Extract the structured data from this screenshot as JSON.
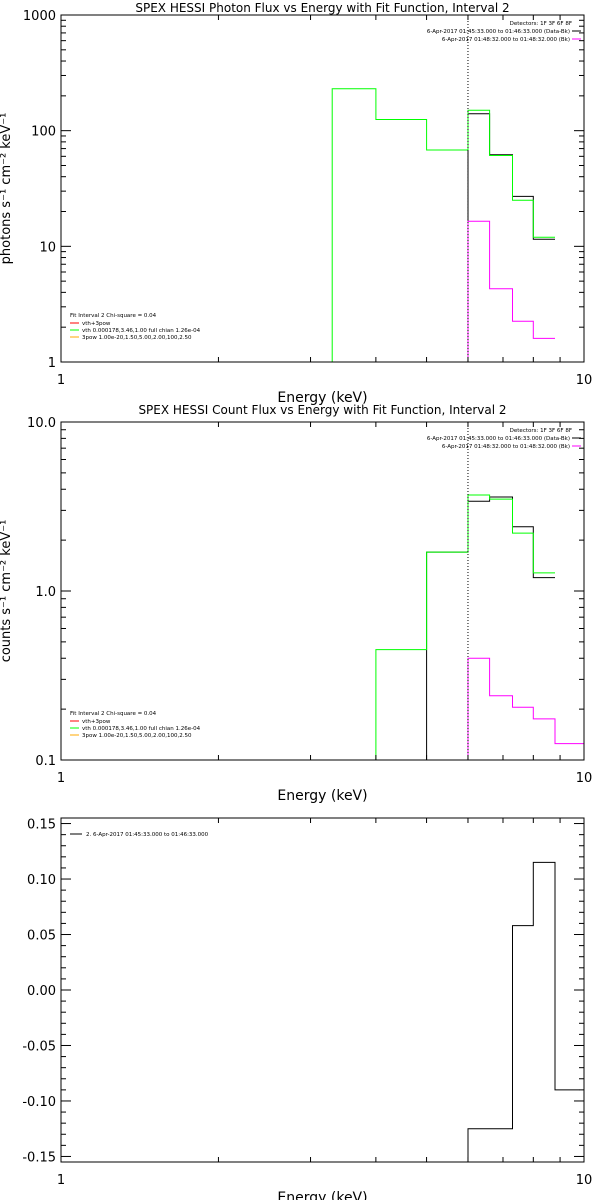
{
  "chart_data": [
    {
      "type": "line",
      "title": "SPEX HESSI Photon Flux vs Energy with Fit Function, Interval 2",
      "xlabel": "Energy (keV)",
      "ylabel": "photons s⁻¹ cm⁻² keV⁻¹",
      "x_scale": "log",
      "y_scale": "log",
      "xlim": [
        1,
        10
      ],
      "ylim": [
        1,
        1000
      ],
      "x_ticks": [
        {
          "v": 1,
          "label": "1"
        },
        {
          "v": 10,
          "label": "10"
        }
      ],
      "y_ticks": [
        {
          "v": 1,
          "label": "1"
        },
        {
          "v": 10,
          "label": "10"
        },
        {
          "v": 100,
          "label": "100"
        },
        {
          "v": 1000,
          "label": "1000"
        }
      ],
      "vline": 6.0,
      "legend_top": {
        "header": "Detectors: 1F 3F 6F 8F",
        "entries": [
          {
            "text": "6-Apr-2017 01:45:33.000 to 01:46:33.000 (Data-Bk)",
            "color": "#000000"
          },
          {
            "text": "6-Apr-2017 01:48:32.000 to 01:48:32.000 (Bk)",
            "color": "#ff00ff"
          }
        ]
      },
      "legend_bottom": {
        "header": "Fit Interval 2   Chi-square = 0.04",
        "entries": [
          {
            "text": "vth+3pow",
            "color": "#ff0000"
          },
          {
            "text": "vth 0.000178,3.46,1.00   full chian 1.26e-04",
            "color": "#00ff00"
          },
          {
            "text": "3pow 1.00e-20,1.50,5.00,2.00,100,2.50",
            "color": "#ffaa00"
          }
        ]
      },
      "series": [
        {
          "color": "#000000",
          "edges": [
            6.0,
            6.6,
            7.3,
            8.0,
            8.8
          ],
          "values": [
            140,
            62,
            27,
            11.5
          ],
          "drop_start": true,
          "drop_end": false
        },
        {
          "color": "#00ff00",
          "edges": [
            3.3,
            4.0,
            5.0,
            6.0,
            6.6,
            7.3,
            8.0,
            8.8
          ],
          "values": [
            230,
            125,
            68,
            150,
            61,
            25,
            12
          ],
          "drop_start": true,
          "drop_end": false
        },
        {
          "color": "#ff00ff",
          "edges": [
            6.0,
            6.6,
            7.3,
            8.0,
            8.8
          ],
          "values": [
            16.5,
            4.3,
            2.25,
            1.6
          ],
          "drop_start": true,
          "drop_end": false
        }
      ]
    },
    {
      "type": "line",
      "title": "SPEX HESSI Count Flux vs Energy with Fit Function, Interval 2",
      "xlabel": "Energy (keV)",
      "ylabel": "counts s⁻¹ cm⁻² keV⁻¹",
      "x_scale": "log",
      "y_scale": "log",
      "xlim": [
        1,
        10
      ],
      "ylim": [
        0.1,
        10
      ],
      "x_ticks": [
        {
          "v": 1,
          "label": "1"
        },
        {
          "v": 10,
          "label": "10"
        }
      ],
      "y_ticks": [
        {
          "v": 0.1,
          "label": "0.1"
        },
        {
          "v": 1,
          "label": "1.0"
        },
        {
          "v": 10,
          "label": "10.0"
        }
      ],
      "vline": 6.0,
      "legend_top": {
        "header": "Detectors: 1F 3F 6F 8F",
        "entries": [
          {
            "text": "6-Apr-2017 01:45:33.000 to 01:46:33.000 (Data-Bk)",
            "color": "#000000"
          },
          {
            "text": "6-Apr-2017 01:48:32.000 to 01:48:32.000 (Bk)",
            "color": "#ff00ff"
          }
        ]
      },
      "legend_bottom": {
        "header": "Fit Interval 2   Chi-square = 0.04",
        "entries": [
          {
            "text": "vth+3pow",
            "color": "#ff0000"
          },
          {
            "text": "vth 0.000178,3.46,1.00   full chian 1.26e-04",
            "color": "#00ff00"
          },
          {
            "text": "3pow 1.00e-20,1.50,5.00,2.00,100,2.50",
            "color": "#ffaa00"
          }
        ]
      },
      "series": [
        {
          "color": "#000000",
          "edges": [
            5.0,
            6.0,
            6.6,
            7.3,
            8.0,
            8.8
          ],
          "values": [
            1.7,
            3.4,
            3.6,
            2.4,
            1.2
          ],
          "drop_start": true,
          "drop_end": false
        },
        {
          "color": "#00ff00",
          "edges": [
            4.0,
            5.0,
            6.0,
            6.6,
            7.3,
            8.0,
            8.8
          ],
          "values": [
            0.45,
            1.7,
            3.7,
            3.5,
            2.2,
            1.28
          ],
          "drop_start": true,
          "drop_end": false
        },
        {
          "color": "#ff00ff",
          "edges": [
            6.0,
            6.6,
            7.3,
            8.0,
            8.8,
            10.0
          ],
          "values": [
            0.4,
            0.24,
            0.205,
            0.175,
            0.125
          ],
          "drop_start": true,
          "drop_end": true
        }
      ]
    },
    {
      "type": "line",
      "title": "",
      "xlabel": "Energy (keV)",
      "ylabel": "",
      "x_scale": "log",
      "y_scale": "linear",
      "xlim": [
        1,
        10
      ],
      "ylim": [
        -0.155,
        0.155
      ],
      "x_ticks": [
        {
          "v": 1,
          "label": "1"
        },
        {
          "v": 10,
          "label": "10"
        }
      ],
      "y_ticks": [
        {
          "v": 0.15,
          "label": "0.15"
        },
        {
          "v": 0.1,
          "label": "0.10"
        },
        {
          "v": 0.05,
          "label": "0.05"
        },
        {
          "v": 0.0,
          "label": "0.00"
        },
        {
          "v": -0.05,
          "label": "-0.05"
        },
        {
          "v": -0.1,
          "label": "-0.10"
        },
        {
          "v": -0.15,
          "label": "-0.15"
        }
      ],
      "vline": null,
      "legend_top_left": {
        "entries": [
          {
            "text": "2.  6-Apr-2017 01:45:33.000 to 01:46:33.000",
            "color": "#000000"
          }
        ]
      },
      "series": [
        {
          "color": "#000000",
          "edges": [
            6.0,
            6.6,
            7.3,
            8.0,
            8.8,
            9.8
          ],
          "values": [
            -0.125,
            -0.125,
            0.058,
            0.115,
            -0.09
          ],
          "drop_start": true,
          "drop_end": false
        }
      ]
    }
  ]
}
